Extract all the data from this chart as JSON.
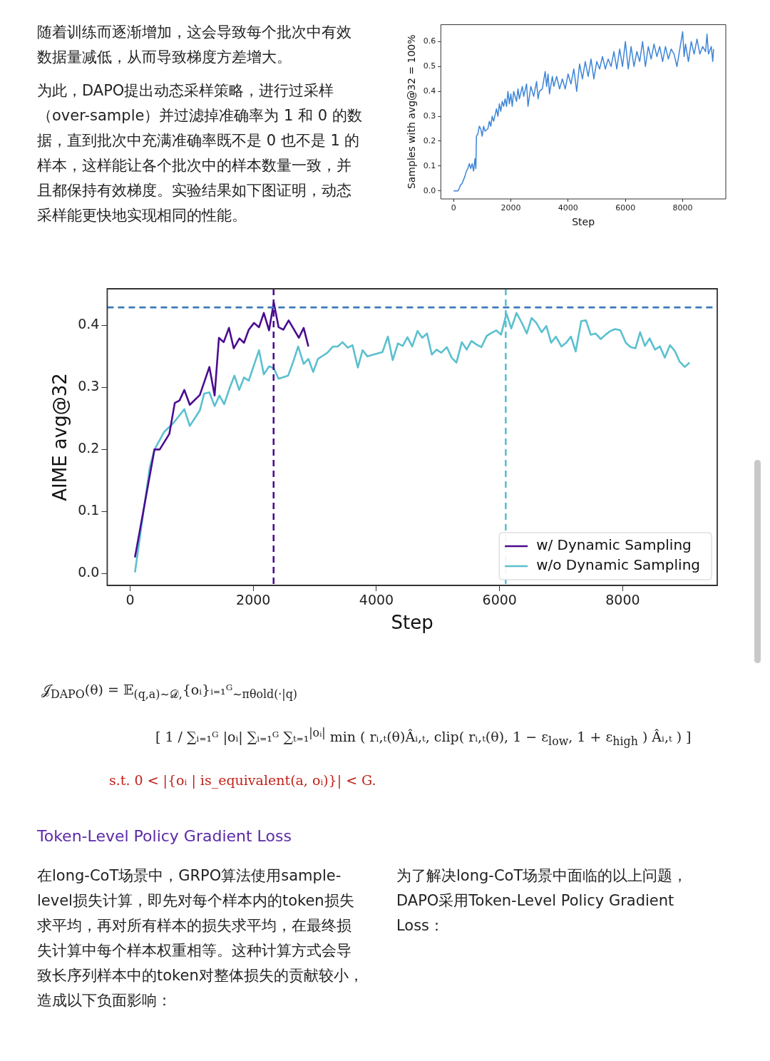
{
  "chart_data": [
    {
      "type": "other",
      "annotations": [
        "随着训练而逐渐增加，这会导致每个批次中有效数据量减低，从而导致梯度方差增大。",
        "为此，DAPO提出动态采样策略，进行过采样（over-sample）并过滤掉准确率为 1 和 0 的数据，直到批次中充满准确率既不是 0 也不是 1 的样本，这样能让各个批次中的样本数量一致，并且都保持有效梯度。实验结果如下图证明，动态采样能更快地实现相同的性能。"
      ]
    },
    {
      "type": "line",
      "xlabel": "Step",
      "ylabel": "Samples with avg@32 = 100%",
      "xlim": [
        -444,
        9506
      ],
      "ylim": [
        -0.032,
        0.668
      ],
      "xticks": [
        0,
        2000,
        4000,
        6000,
        8000
      ],
      "yticks": [
        {
          "value": 0,
          "label": "0.0"
        },
        0.1,
        0.2,
        0.3,
        0.4,
        0.5,
        0.6
      ],
      "marker": "none",
      "series": [
        {
          "color": "#3d85d6",
          "x": [
            0,
            150,
            200,
            250,
            300,
            400,
            450,
            500,
            550,
            600,
            650,
            700,
            750,
            780,
            800,
            850,
            900,
            950,
            1000,
            1050,
            1100,
            1200,
            1250,
            1300,
            1350,
            1400,
            1500,
            1550,
            1600,
            1650,
            1700,
            1750,
            1800,
            1850,
            1900,
            1950,
            2000,
            2050,
            2100,
            2200,
            2250,
            2300,
            2400,
            2450,
            2550,
            2600,
            2700,
            2800,
            2900,
            2950,
            3000,
            3100,
            3200,
            3250,
            3300,
            3350,
            3450,
            3500,
            3600,
            3700,
            3800,
            3900,
            4000,
            4100,
            4200,
            4300,
            4400,
            4500,
            4600,
            4700,
            4800,
            4900,
            5000,
            5100,
            5200,
            5300,
            5400,
            5500,
            5600,
            5700,
            5800,
            5900,
            6000,
            6100,
            6200,
            6300,
            6400,
            6500,
            6600,
            6700,
            6800,
            6900,
            7000,
            7100,
            7200,
            7300,
            7400,
            7500,
            7600,
            7700,
            7800,
            7900,
            8000,
            8050,
            8100,
            8200,
            8300,
            8400,
            8500,
            8600,
            8700,
            8800,
            8850,
            8900,
            9000,
            9050,
            9080
          ],
          "values": [
            0,
            0,
            0.01,
            0.025,
            0.03,
            0.06,
            0.08,
            0.09,
            0.11,
            0.09,
            0.11,
            0.08,
            0.13,
            0.09,
            0.22,
            0.23,
            0.26,
            0.25,
            0.22,
            0.26,
            0.24,
            0.25,
            0.28,
            0.26,
            0.3,
            0.28,
            0.33,
            0.3,
            0.35,
            0.32,
            0.36,
            0.34,
            0.37,
            0.34,
            0.4,
            0.35,
            0.39,
            0.34,
            0.4,
            0.36,
            0.41,
            0.37,
            0.42,
            0.38,
            0.43,
            0.34,
            0.42,
            0.38,
            0.44,
            0.37,
            0.4,
            0.41,
            0.48,
            0.42,
            0.47,
            0.39,
            0.46,
            0.42,
            0.46,
            0.41,
            0.45,
            0.41,
            0.47,
            0.43,
            0.49,
            0.4,
            0.51,
            0.45,
            0.52,
            0.46,
            0.53,
            0.45,
            0.52,
            0.49,
            0.54,
            0.49,
            0.53,
            0.5,
            0.56,
            0.49,
            0.57,
            0.5,
            0.6,
            0.49,
            0.58,
            0.5,
            0.56,
            0.52,
            0.6,
            0.5,
            0.58,
            0.53,
            0.59,
            0.54,
            0.58,
            0.52,
            0.58,
            0.53,
            0.57,
            0.55,
            0.5,
            0.57,
            0.64,
            0.54,
            0.59,
            0.52,
            0.6,
            0.55,
            0.61,
            0.55,
            0.58,
            0.56,
            0.63,
            0.55,
            0.58,
            0.52,
            0.57
          ]
        }
      ]
    },
    {
      "type": "line",
      "xlabel": "Step",
      "ylabel": "AIME avg@32",
      "xlim": [
        -372,
        9535
      ],
      "ylim": [
        -0.019,
        0.459
      ],
      "xticks": [
        0,
        2000,
        4000,
        6000,
        8000
      ],
      "yticks": [
        {
          "value": 0,
          "label": "0.0"
        },
        0.1,
        0.2,
        0.3,
        0.4
      ],
      "marker": "none",
      "legend": "bottom right",
      "ref_lines": [
        {
          "axis": "y",
          "value": 0.429,
          "color": "#3a7ab8",
          "line_style": "dashed"
        },
        {
          "axis": "x",
          "value": 2330,
          "color": "#4b0c8f",
          "line_style": "dashed"
        },
        {
          "axis": "x",
          "value": 6100,
          "color": "#5bc0cf",
          "line_style": "dashed"
        }
      ],
      "series": [
        {
          "name": "w/ Dynamic Sampling",
          "color": "#4b0c8f",
          "x": [
            78,
            395,
            480,
            636,
            725,
            802,
            880,
            969,
            1132,
            1287,
            1372,
            1442,
            1519,
            1605,
            1682,
            1775,
            1849,
            1926,
            2012,
            2093,
            2171,
            2256,
            2333,
            2411,
            2488,
            2574,
            2663,
            2740,
            2818,
            2895
          ],
          "values": [
            0.026,
            0.2,
            0.2,
            0.225,
            0.275,
            0.279,
            0.296,
            0.272,
            0.288,
            0.333,
            0.287,
            0.38,
            0.373,
            0.396,
            0.363,
            0.379,
            0.372,
            0.393,
            0.404,
            0.397,
            0.42,
            0.392,
            0.437,
            0.397,
            0.393,
            0.408,
            0.393,
            0.38,
            0.396,
            0.366
          ]
        },
        {
          "name": "w/o Dynamic Sampling",
          "color": "#5bc0cf",
          "x": [
            78,
            318,
            395,
            550,
            705,
            880,
            969,
            1132,
            1202,
            1287,
            1372,
            1450,
            1527,
            1616,
            1694,
            1771,
            1849,
            1926,
            2004,
            2093,
            2171,
            2256,
            2333,
            2411,
            2566,
            2643,
            2729,
            2818,
            2895,
            2973,
            3050,
            3128,
            3205,
            3295,
            3372,
            3449,
            3535,
            3612,
            3698,
            3775,
            3853,
            4098,
            4186,
            4264,
            4349,
            4427,
            4504,
            4581,
            4667,
            4744,
            4822,
            4899,
            4977,
            5054,
            5143,
            5221,
            5299,
            5387,
            5465,
            5543,
            5628,
            5705,
            5791,
            5869,
            5946,
            6023,
            6112,
            6190,
            6275,
            6357,
            6442,
            6520,
            6597,
            6683,
            6760,
            6837,
            6915,
            7004,
            7081,
            7159,
            7236,
            7326,
            7403,
            7480,
            7558,
            7643,
            7721,
            7799,
            7876,
            7962,
            8050,
            8128,
            8206,
            8283,
            8360,
            8438,
            8523,
            8605,
            8683,
            8767,
            8845,
            8922,
            9008,
            9085
          ],
          "values": [
            0.002,
            0.171,
            0.2,
            0.228,
            0.243,
            0.265,
            0.238,
            0.263,
            0.29,
            0.292,
            0.27,
            0.287,
            0.273,
            0.299,
            0.319,
            0.296,
            0.316,
            0.311,
            0.334,
            0.36,
            0.321,
            0.334,
            0.331,
            0.314,
            0.319,
            0.34,
            0.366,
            0.338,
            0.346,
            0.325,
            0.346,
            0.351,
            0.356,
            0.366,
            0.366,
            0.373,
            0.364,
            0.368,
            0.332,
            0.36,
            0.35,
            0.357,
            0.382,
            0.344,
            0.371,
            0.367,
            0.381,
            0.366,
            0.391,
            0.38,
            0.387,
            0.353,
            0.361,
            0.356,
            0.365,
            0.348,
            0.34,
            0.373,
            0.361,
            0.375,
            0.369,
            0.365,
            0.383,
            0.388,
            0.392,
            0.385,
            0.419,
            0.395,
            0.42,
            0.405,
            0.387,
            0.412,
            0.404,
            0.389,
            0.399,
            0.372,
            0.382,
            0.366,
            0.372,
            0.382,
            0.358,
            0.407,
            0.408,
            0.385,
            0.387,
            0.378,
            0.385,
            0.391,
            0.394,
            0.392,
            0.372,
            0.365,
            0.363,
            0.389,
            0.367,
            0.379,
            0.361,
            0.366,
            0.348,
            0.368,
            0.359,
            0.342,
            0.333,
            0.34
          ]
        }
      ]
    },
    {
      "type": "other",
      "annotations": [
        "𝒥$_{DAPO}$(θ) =   𝔼$_{(q,a)∼𝒟,}${oᵢ}ᵢ₌₁ᴳ$_{∼πθold(·|q)}$",
        "[ 1 / ∑ᵢ₌₁ᴳ |oᵢ|  ∑ᵢ₌₁ᴳ ∑ₜ₌₁$^{|oᵢ|}$ min ( rᵢ,ₜ(θ)Âᵢ,ₜ,  clip( rᵢ,ₜ(θ), 1 − ε$_{low}$, 1 + ε$_{high}$ ) Âᵢ,ₜ ) ]",
        "s.t.   0 < |{oᵢ | is_equivalent(a, oᵢ)}| < G."
      ]
    },
    {
      "type": "other",
      "title": "Token-Level Policy Gradient Loss",
      "annotations": [
        "在long-CoT场景中，GRPO算法使用sample-level损失计算，即先对每个样本内的token损失求平均，再对所有样本的损失求平均，在最终损失计算中每个样本权重相等。这种计算方式会导致长序列样本中的token对整体损失的贡献较小，造成以下负面影响：",
        "为了解决long-CoT场景中面临的以上问题，DAPO采用Token-Level Policy Gradient Loss："
      ]
    }
  ]
}
